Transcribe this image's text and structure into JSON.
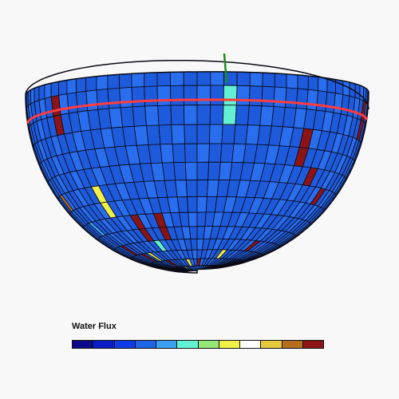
{
  "legend": {
    "title": "Water Flux",
    "colors": [
      "#0a0a8a",
      "#0a1ec8",
      "#0f3ce6",
      "#1e64e6",
      "#3ca0f0",
      "#64f0d2",
      "#96e678",
      "#f0f046",
      "#ffffff",
      "#e6c83c",
      "#b46e1e",
      "#8c1414"
    ]
  },
  "globe": {
    "base_color": "#1e5adc",
    "alt_color": "#2a6ef0",
    "grid_color": "#0a0a14",
    "equator_line_color": "#ff3c3c",
    "axis_color": "#1e8c1e",
    "highlight_cells": [
      {
        "row": 1,
        "col": 7,
        "color": "#8c1414"
      },
      {
        "row": 1,
        "col": 22,
        "color": "#64f0d2"
      },
      {
        "row": 1,
        "col": 37,
        "color": "#8c1414"
      },
      {
        "row": 2,
        "col": 7,
        "color": "#8c1414"
      },
      {
        "row": 2,
        "col": 22,
        "color": "#64f0d2"
      },
      {
        "row": 2,
        "col": 37,
        "color": "#8c1414"
      },
      {
        "row": 3,
        "col": 29,
        "color": "#8c1414"
      },
      {
        "row": 4,
        "col": 29,
        "color": "#8c1414"
      },
      {
        "row": 5,
        "col": 31,
        "color": "#8c1414"
      },
      {
        "row": 6,
        "col": 2,
        "color": "#b46e1e"
      },
      {
        "row": 6,
        "col": 9,
        "color": "#f0f046"
      },
      {
        "row": 6,
        "col": 34,
        "color": "#8c1414"
      },
      {
        "row": 7,
        "col": 9,
        "color": "#f0f046"
      },
      {
        "row": 8,
        "col": 4,
        "color": "#3ca0f0"
      },
      {
        "row": 8,
        "col": 12,
        "color": "#8c1414"
      },
      {
        "row": 8,
        "col": 15,
        "color": "#8c1414"
      },
      {
        "row": 9,
        "col": 12,
        "color": "#8c1414"
      },
      {
        "row": 9,
        "col": 15,
        "color": "#8c1414"
      },
      {
        "row": 10,
        "col": 5,
        "color": "#8c1414"
      },
      {
        "row": 10,
        "col": 13,
        "color": "#64f0d2"
      },
      {
        "row": 10,
        "col": 30,
        "color": "#8c1414"
      },
      {
        "row": 11,
        "col": 7,
        "color": "#8c1414"
      },
      {
        "row": 11,
        "col": 9,
        "color": "#f0f046"
      },
      {
        "row": 11,
        "col": 25,
        "color": "#f0f046"
      },
      {
        "row": 12,
        "col": 11,
        "color": "#8c1414"
      },
      {
        "row": 12,
        "col": 17,
        "color": "#f0f046"
      },
      {
        "row": 12,
        "col": 20,
        "color": "#8c1414"
      },
      {
        "row": 13,
        "col": 14,
        "color": "#f0f046"
      }
    ]
  }
}
